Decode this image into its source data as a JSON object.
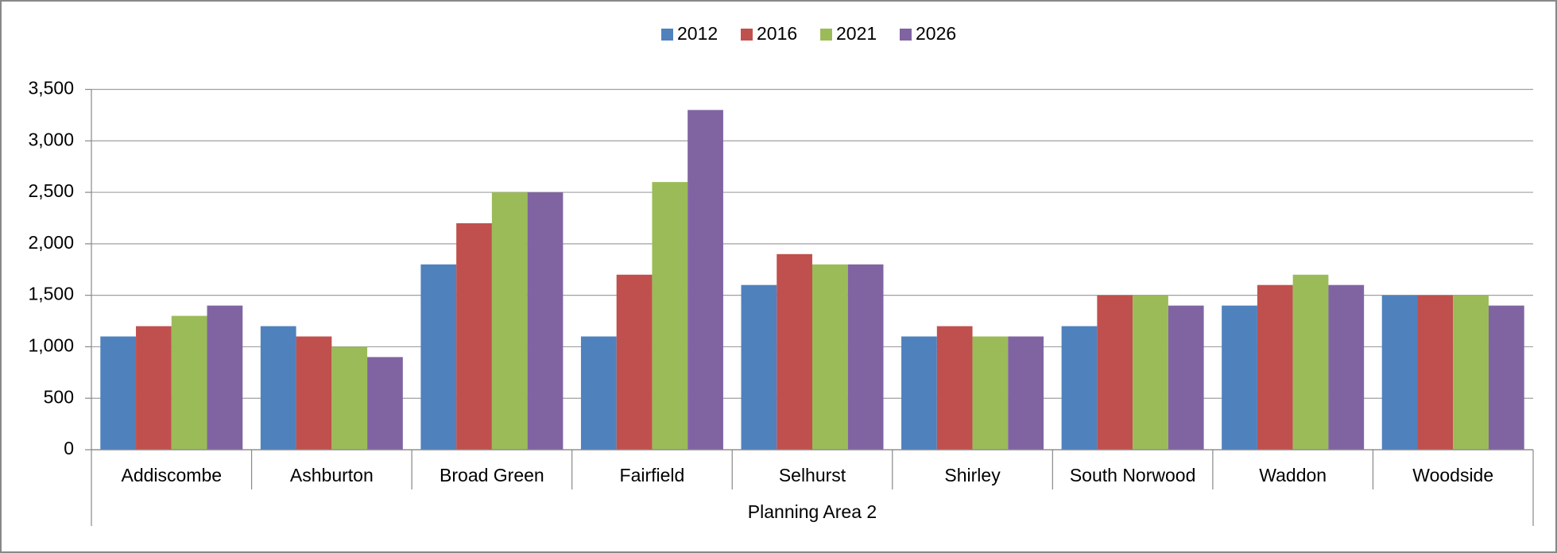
{
  "chart_data": {
    "type": "bar",
    "categories": [
      "Addiscombe",
      "Ashburton",
      "Broad Green",
      "Fairfield",
      "Selhurst",
      "Shirley",
      "South Norwood",
      "Waddon",
      "Woodside"
    ],
    "category_group": "Planning Area 2",
    "series": [
      {
        "name": "2012",
        "color": "#4f81bd",
        "values": [
          1100,
          1200,
          1800,
          1100,
          1600,
          1100,
          1200,
          1400,
          1500
        ]
      },
      {
        "name": "2016",
        "color": "#c0504d",
        "values": [
          1200,
          1100,
          2200,
          1700,
          1900,
          1200,
          1500,
          1600,
          1500
        ]
      },
      {
        "name": "2021",
        "color": "#9bbb59",
        "values": [
          1300,
          1000,
          2500,
          2600,
          1800,
          1100,
          1500,
          1700,
          1500
        ]
      },
      {
        "name": "2026",
        "color": "#8064a2",
        "values": [
          1400,
          900,
          2500,
          3300,
          1800,
          1100,
          1400,
          1600,
          1400
        ]
      }
    ],
    "ylim": [
      0,
      3500
    ],
    "yticks": [
      0,
      500,
      {
        "value": 1000,
        "label": "1,000"
      },
      {
        "value": 1500,
        "label": "1,500"
      },
      {
        "value": 2000,
        "label": "2,000"
      },
      {
        "value": 2500,
        "label": "2,500"
      },
      {
        "value": 3000,
        "label": "3,000"
      },
      {
        "value": 3500,
        "label": "3,500"
      }
    ],
    "grid": true,
    "legend": "top"
  }
}
